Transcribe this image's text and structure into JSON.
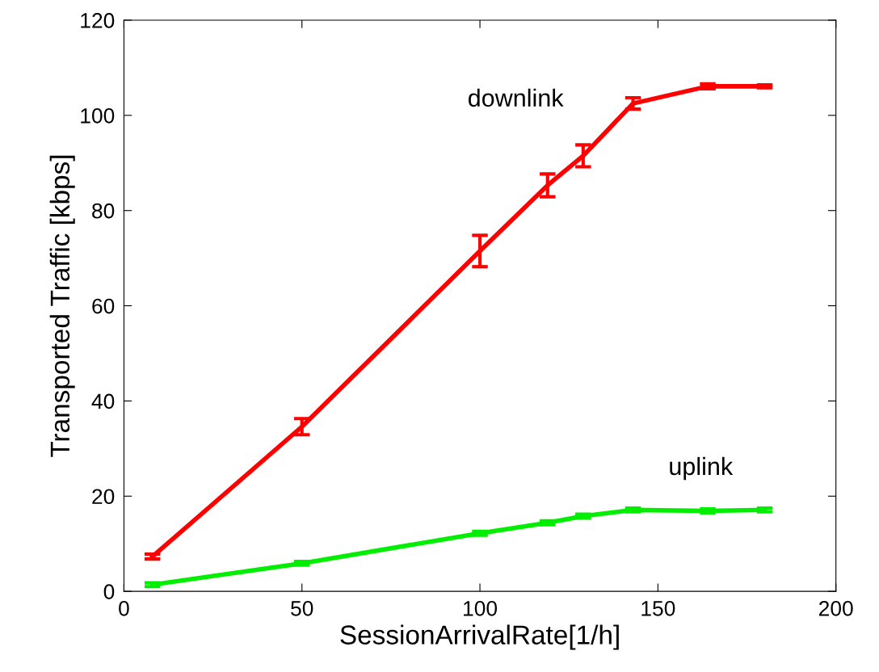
{
  "chart_data": {
    "type": "line",
    "xlabel": "SessionArrivalRate[1/h]",
    "ylabel": "Transported Traffic [kbps]",
    "x": [
      8,
      50,
      100,
      119,
      129,
      143,
      164,
      180
    ],
    "series": [
      {
        "color": "#ff0000",
        "values": [
          7.3,
          34.6,
          71.5,
          85.3,
          91.5,
          102.5,
          106.1,
          106.1
        ],
        "errors": [
          0.5,
          1.7,
          3.3,
          2.4,
          2.3,
          1.2,
          0.5,
          0.3
        ]
      },
      {
        "color": "#00ee00",
        "values": [
          1.4,
          5.9,
          12.2,
          14.4,
          15.8,
          17.1,
          16.9,
          17.1
        ],
        "errors": [
          0.4,
          0.4,
          0.4,
          0.4,
          0.4,
          0.4,
          0.4,
          0.4
        ]
      }
    ],
    "annotations": [
      "downlink",
      "uplink"
    ],
    "xlim": [
      0,
      200
    ],
    "xticks": [
      0,
      50,
      100,
      150,
      200
    ],
    "ylim": [
      0,
      120
    ],
    "yticks": [
      0,
      20,
      40,
      60,
      80,
      100,
      120
    ],
    "grid": false,
    "legend": false,
    "marker": "none",
    "line_style": "solid"
  }
}
